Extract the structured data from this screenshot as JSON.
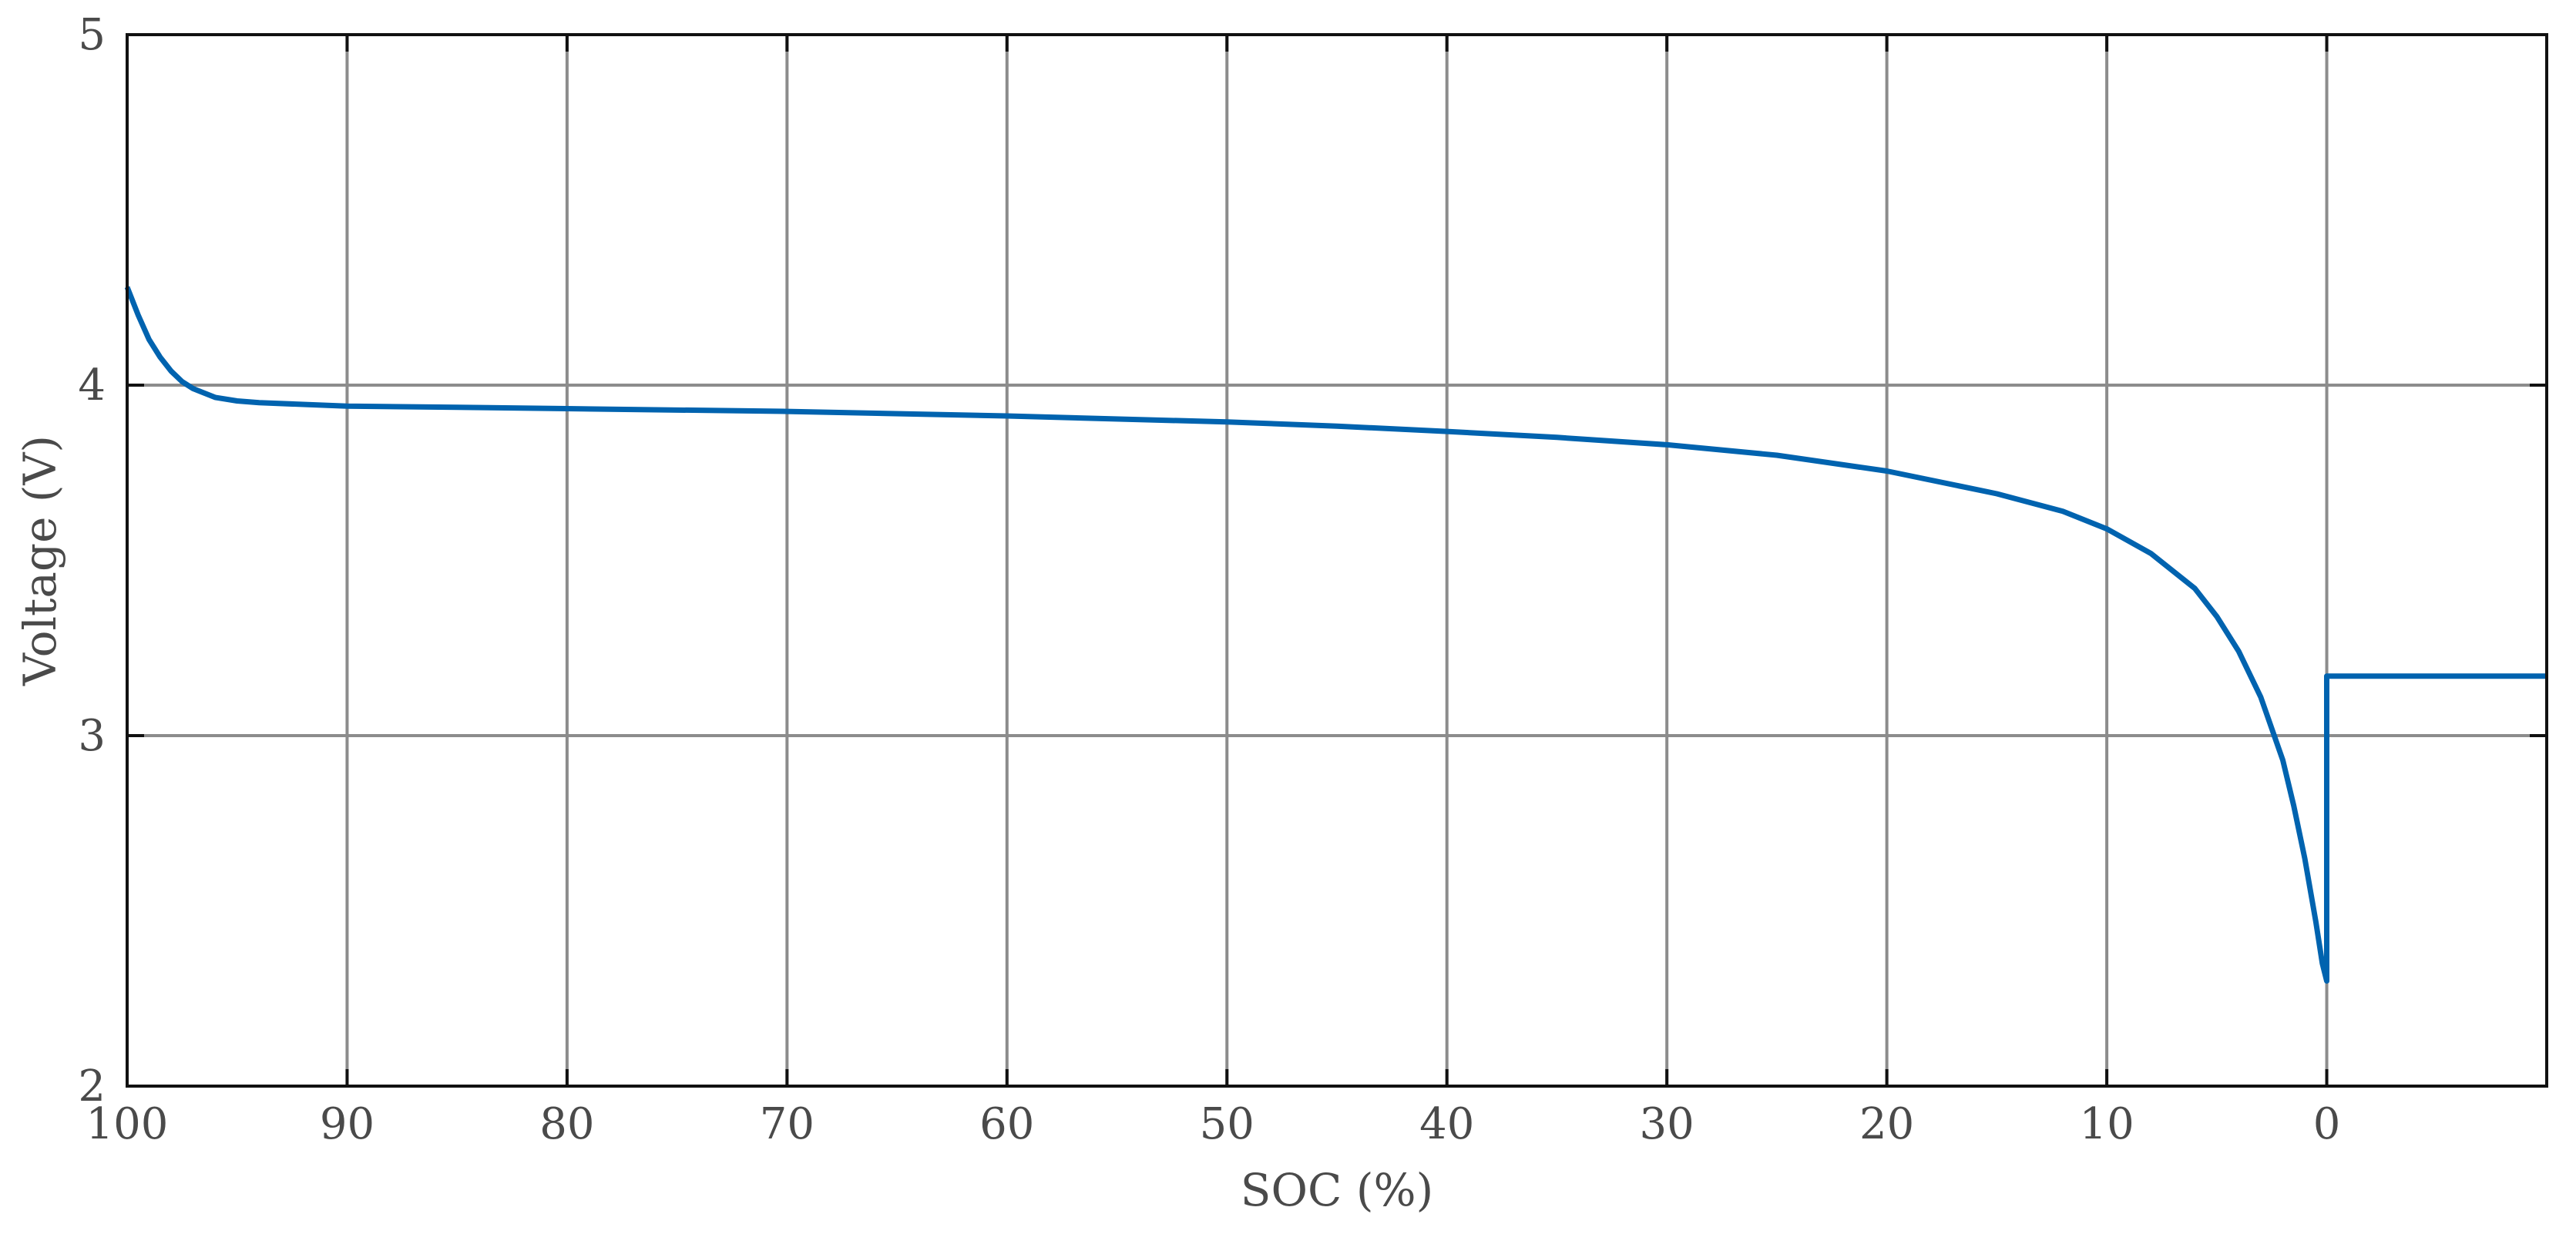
{
  "chart_data": {
    "type": "line",
    "title": "",
    "xlabel": "SOC (%)",
    "ylabel": "Voltage (V)",
    "x_axis_reversed": true,
    "xlim": [
      100,
      -10
    ],
    "ylim": [
      2,
      5
    ],
    "x_ticks": [
      100,
      90,
      80,
      70,
      60,
      50,
      40,
      30,
      20,
      10,
      0
    ],
    "x_tick_labels": [
      "100",
      "90",
      "80",
      "70",
      "60",
      "50",
      "40",
      "30",
      "20",
      "10",
      "0"
    ],
    "y_ticks": [
      2,
      3,
      4,
      5
    ],
    "y_tick_labels": [
      "2",
      "3",
      "4",
      "5"
    ],
    "grid": true,
    "legend": "none",
    "colors": {
      "line": "#0063AF",
      "grid": "#8c8c8c",
      "axis": "#111111"
    },
    "series": [
      {
        "x": [
          100,
          99.5,
          99,
          98.5,
          98,
          97.5,
          97,
          96,
          95,
          94,
          92,
          90,
          85,
          80,
          70,
          60,
          50,
          45,
          40,
          35,
          30,
          25,
          20,
          15,
          12,
          10,
          8,
          6,
          5,
          4,
          3,
          2,
          1.5,
          1,
          0.5,
          0.2,
          0,
          0,
          0,
          -5,
          -10
        ],
        "y": [
          4.28,
          4.2,
          4.13,
          4.08,
          4.04,
          4.01,
          3.99,
          3.965,
          3.955,
          3.95,
          3.945,
          3.94,
          3.937,
          3.933,
          3.925,
          3.912,
          3.895,
          3.883,
          3.868,
          3.851,
          3.83,
          3.8,
          3.755,
          3.69,
          3.64,
          3.59,
          3.52,
          3.42,
          3.34,
          3.24,
          3.11,
          2.93,
          2.8,
          2.65,
          2.47,
          2.35,
          2.3,
          2.65,
          3.17,
          3.17,
          3.17
        ]
      }
    ]
  }
}
